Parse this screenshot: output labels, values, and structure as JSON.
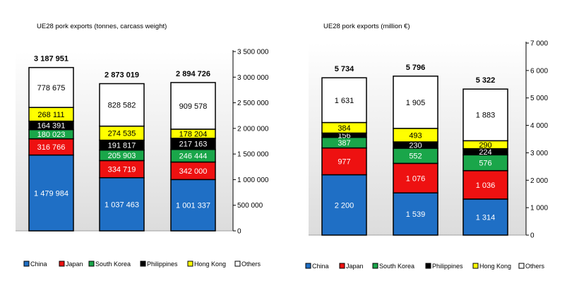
{
  "colors": {
    "China": "#1f6fc5",
    "Japan": "#ee1111",
    "South Korea": "#1aa64a",
    "Philippines": "#000000",
    "Hong Kong": "#ffff00",
    "Others": "#ffffff"
  },
  "legend_order": [
    "China",
    "Japan",
    "South Korea",
    "Philippines",
    "Hong Kong",
    "Others"
  ],
  "chart_data": [
    {
      "type": "bar",
      "stacked": true,
      "title": "UE28 pork exports (tonnes, carcass weight)",
      "ylim": [
        0,
        3500000
      ],
      "ytick_labels": [
        "0",
        "500 000",
        "1 000 000",
        "1 500 000",
        "2 000 000",
        "2 500 000",
        "3 000 000",
        "3 500 000"
      ],
      "categories": [
        "",
        "",
        ""
      ],
      "totals_labels": [
        "3 187 951",
        "2 873 019",
        "2 894 726"
      ],
      "series": [
        {
          "name": "China",
          "values": [
            1479984,
            1037463,
            1001337
          ],
          "labels": [
            "1 479 984",
            "1 037 463",
            "1 001 337"
          ]
        },
        {
          "name": "Japan",
          "values": [
            316766,
            334719,
            342000
          ],
          "labels": [
            "316 766",
            "334 719",
            "342 000"
          ]
        },
        {
          "name": "South Korea",
          "values": [
            180023,
            205903,
            246444
          ],
          "labels": [
            "180 023",
            "205 903",
            "246 444"
          ]
        },
        {
          "name": "Philippines",
          "values": [
            164391,
            191817,
            217163
          ],
          "labels": [
            "164 391",
            "191 817",
            "217 163"
          ]
        },
        {
          "name": "Hong Kong",
          "values": [
            268111,
            274535,
            178204
          ],
          "labels": [
            "268 111",
            "274 535",
            "178 204"
          ]
        },
        {
          "name": "Others",
          "values": [
            778675,
            828582,
            909578
          ],
          "labels": [
            "778 675",
            "828 582",
            "909 578"
          ]
        }
      ],
      "legend": [
        "China",
        "Japan",
        "South Korea",
        "Philippines",
        "Hong Kong",
        "Others"
      ],
      "legend_position": "bottom"
    },
    {
      "type": "bar",
      "stacked": true,
      "title": "UE28 pork exports (million €)",
      "ylim": [
        0,
        7000
      ],
      "ytick_labels": [
        "0",
        "1 000",
        "2 000",
        "3 000",
        "4 000",
        "5 000",
        "6 000",
        "7 000"
      ],
      "categories": [
        "",
        "",
        ""
      ],
      "totals_labels": [
        "5 734",
        "5 796",
        "5 322"
      ],
      "series": [
        {
          "name": "China",
          "values": [
            2200,
            1539,
            1314
          ],
          "labels": [
            "2 200",
            "1 539",
            "1 314"
          ]
        },
        {
          "name": "Japan",
          "values": [
            977,
            1076,
            1036
          ],
          "labels": [
            "977",
            "1 076",
            "1 036"
          ]
        },
        {
          "name": "South Korea",
          "values": [
            387,
            552,
            576
          ],
          "labels": [
            "387",
            "552",
            "576"
          ]
        },
        {
          "name": "Philippines",
          "values": [
            156,
            230,
            224
          ],
          "labels": [
            "156",
            "230",
            "224"
          ]
        },
        {
          "name": "Hong Kong",
          "values": [
            384,
            493,
            290
          ],
          "labels": [
            "384",
            "493",
            "290"
          ]
        },
        {
          "name": "Others",
          "values": [
            1631,
            1905,
            1883
          ],
          "labels": [
            "1 631",
            "1 905",
            "1 883"
          ]
        }
      ],
      "legend": [
        "China",
        "Japan",
        "South Korea",
        "Philippines",
        "Hong Kong",
        "Others"
      ],
      "legend_position": "bottom"
    }
  ]
}
